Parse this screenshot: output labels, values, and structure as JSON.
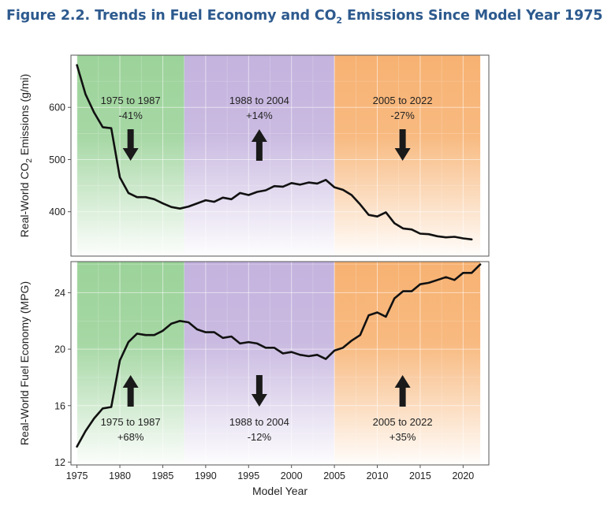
{
  "figure": {
    "title_pre": "Figure 2.2. Trends in Fuel Economy and CO",
    "title_sub": "2",
    "title_post": " Emissions Since Model Year 1975"
  },
  "colors": {
    "green": "#9cd39a",
    "purple": "#c4b3de",
    "orange": "#f7b272",
    "line": "#111111",
    "arrow": "#1a1a1a",
    "frame": "#555555",
    "title": "#2d5a8e"
  },
  "chart_data": [
    {
      "type": "line",
      "id": "co2",
      "ylabel": "Real-World CO2 Emissions (g/mi)",
      "ylabel_pre": "Real-World CO",
      "ylabel_sub": "2",
      "ylabel_post": " Emissions (g/mi)",
      "ylim": [
        315,
        700
      ],
      "yticks": [
        400,
        500,
        600
      ],
      "xlim": [
        1974.3,
        2023.0
      ],
      "grid": true,
      "periods": [
        {
          "start": 1975,
          "end": 1987.5,
          "color": "green",
          "label": "1975 to 1987",
          "change": "-41%",
          "direction": "down"
        },
        {
          "start": 1987.5,
          "end": 2005,
          "color": "purple",
          "label": "1988 to 2004",
          "change": "+14%",
          "direction": "up"
        },
        {
          "start": 2005,
          "end": 2022,
          "color": "orange",
          "label": "2005 to 2022",
          "change": "-27%",
          "direction": "down"
        }
      ],
      "x": [
        1975,
        1976,
        1977,
        1978,
        1979,
        1980,
        1981,
        1982,
        1983,
        1984,
        1985,
        1986,
        1987,
        1988,
        1989,
        1990,
        1991,
        1992,
        1993,
        1994,
        1995,
        1996,
        1997,
        1998,
        1999,
        2000,
        2001,
        2002,
        2003,
        2004,
        2005,
        2006,
        2007,
        2008,
        2009,
        2010,
        2011,
        2012,
        2013,
        2014,
        2015,
        2016,
        2017,
        2018,
        2019,
        2020,
        2021
      ],
      "values": [
        681,
        625,
        590,
        562,
        560,
        466,
        436,
        428,
        428,
        424,
        416,
        409,
        406,
        410,
        416,
        422,
        419,
        427,
        424,
        436,
        432,
        438,
        441,
        449,
        448,
        455,
        452,
        456,
        454,
        461,
        447,
        442,
        432,
        414,
        394,
        391,
        399,
        378,
        368,
        366,
        358,
        357,
        353,
        351,
        352,
        349,
        347
      ]
    },
    {
      "type": "line",
      "id": "mpg",
      "ylabel": "Real-World Fuel Economy (MPG)",
      "ylim": [
        11.8,
        26.2
      ],
      "yticks": [
        12,
        16,
        20,
        24
      ],
      "xlim": [
        1974.3,
        2023.0
      ],
      "xlabel": "Model Year",
      "xticks": [
        1975,
        1980,
        1985,
        1990,
        1995,
        2000,
        2005,
        2010,
        2015,
        2020
      ],
      "grid": true,
      "periods": [
        {
          "start": 1975,
          "end": 1987.5,
          "color": "green",
          "label": "1975 to 1987",
          "change": "+68%",
          "direction": "up"
        },
        {
          "start": 1987.5,
          "end": 2005,
          "color": "purple",
          "label": "1988 to 2004",
          "change": "-12%",
          "direction": "down"
        },
        {
          "start": 2005,
          "end": 2022,
          "color": "orange",
          "label": "2005 to 2022",
          "change": "+35%",
          "direction": "up"
        }
      ],
      "x": [
        1975,
        1976,
        1977,
        1978,
        1979,
        1980,
        1981,
        1982,
        1983,
        1984,
        1985,
        1986,
        1987,
        1988,
        1989,
        1990,
        1991,
        1992,
        1993,
        1994,
        1995,
        1996,
        1997,
        1998,
        1999,
        2000,
        2001,
        2002,
        2003,
        2004,
        2005,
        2006,
        2007,
        2008,
        2009,
        2010,
        2011,
        2012,
        2013,
        2014,
        2015,
        2016,
        2017,
        2018,
        2019,
        2020,
        2021,
        2022
      ],
      "values": [
        13.1,
        14.2,
        15.1,
        15.8,
        15.9,
        19.2,
        20.5,
        21.1,
        21.0,
        21.0,
        21.3,
        21.8,
        22.0,
        21.9,
        21.4,
        21.2,
        21.2,
        20.8,
        20.9,
        20.4,
        20.5,
        20.4,
        20.1,
        20.1,
        19.7,
        19.8,
        19.6,
        19.5,
        19.6,
        19.3,
        19.9,
        20.1,
        20.6,
        21.0,
        22.4,
        22.6,
        22.3,
        23.6,
        24.1,
        24.1,
        24.6,
        24.7,
        24.9,
        25.1,
        24.9,
        25.4,
        25.4,
        26.0
      ]
    }
  ]
}
